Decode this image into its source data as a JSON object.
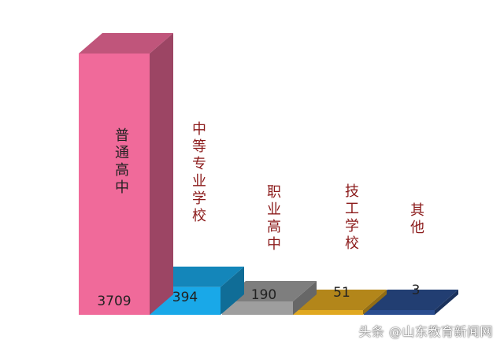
{
  "chart_data": {
    "type": "bar",
    "style": "3d",
    "categories": [
      "普通高中",
      "中等专业学校",
      "职业高中",
      "技工学校",
      "其他"
    ],
    "values": [
      3709,
      394,
      190,
      51,
      3
    ],
    "value_labels": [
      "3709",
      "394",
      "190",
      "51",
      "3"
    ],
    "colors": [
      "#f06a9a",
      "#19a8e8",
      "#9e9e9e",
      "#e0a820",
      "#2a4d8f"
    ],
    "title": "",
    "xlabel": "",
    "ylabel": "",
    "grid": false,
    "legend": "none"
  },
  "watermark": "头条 @山东教育新闻网"
}
